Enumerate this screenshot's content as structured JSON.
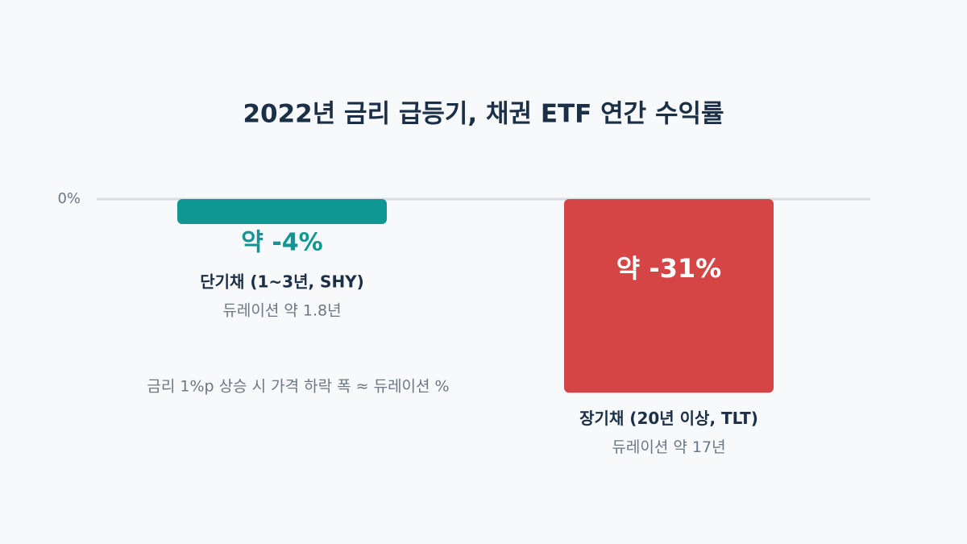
{
  "chart_data": {
    "type": "bar",
    "title": "2022년 금리 급등기, 채권 ETF 연간 수익률",
    "categories": [
      "단기채 (1~3년, SHY)",
      "장기채 (20년 이상, TLT)"
    ],
    "category_notes": [
      "듀레이션 약 1.8년",
      "듀레이션 약 17년"
    ],
    "values": [
      -4,
      -31
    ],
    "value_labels": [
      "약 -4%",
      "약 -31%"
    ],
    "colors": [
      "#0f9893",
      "#d64545"
    ],
    "ylim": [
      -40,
      0
    ],
    "yticks": [
      {
        "value": 0,
        "label": "0%"
      }
    ],
    "grid": true,
    "annotation": "금리 1%p 상승 시 가격 하락 폭 ≈ 듀레이션 %"
  }
}
